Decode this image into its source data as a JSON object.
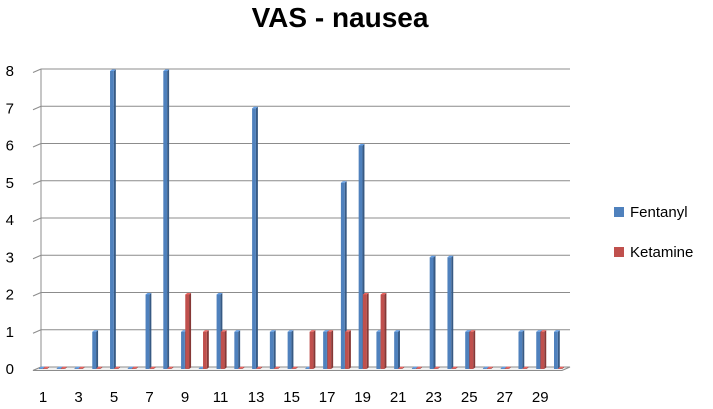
{
  "chart_data": {
    "type": "bar",
    "title": "VAS - nausea",
    "xlabel": "",
    "ylabel": "",
    "ylim": [
      0,
      8
    ],
    "y_ticks": [
      "0",
      "1",
      "2",
      "3",
      "4",
      "5",
      "6",
      "7",
      "8"
    ],
    "categories": [
      "1",
      "2",
      "3",
      "4",
      "5",
      "6",
      "7",
      "8",
      "9",
      "10",
      "11",
      "12",
      "13",
      "14",
      "15",
      "16",
      "17",
      "18",
      "19",
      "20",
      "21",
      "22",
      "23",
      "24",
      "25",
      "26",
      "27",
      "28",
      "29",
      "30"
    ],
    "x_tick_labels": [
      "1",
      "",
      "3",
      "",
      "5",
      "",
      "7",
      "",
      "9",
      "",
      "11",
      "",
      "13",
      "",
      "15",
      "",
      "17",
      "",
      "19",
      "",
      "21",
      "",
      "23",
      "",
      "25",
      "",
      "27",
      "",
      "29",
      ""
    ],
    "grid": true,
    "legend_position": "right",
    "series": [
      {
        "name": "Fentanyl",
        "color": "#4F81BD",
        "values": [
          0,
          0,
          0,
          1,
          8,
          0,
          2,
          8,
          1,
          0,
          2,
          1,
          7,
          1,
          1,
          0,
          1,
          5,
          6,
          1,
          1,
          0,
          3,
          3,
          1,
          0,
          0,
          1,
          1,
          1
        ]
      },
      {
        "name": "Ketamine",
        "color": "#C0504D",
        "values": [
          0,
          0,
          0,
          0,
          0,
          0,
          0,
          0,
          2,
          1,
          1,
          0,
          0,
          0,
          0,
          1,
          1,
          1,
          2,
          2,
          0,
          0,
          0,
          0,
          1,
          0,
          0,
          0,
          1,
          0
        ]
      }
    ]
  }
}
